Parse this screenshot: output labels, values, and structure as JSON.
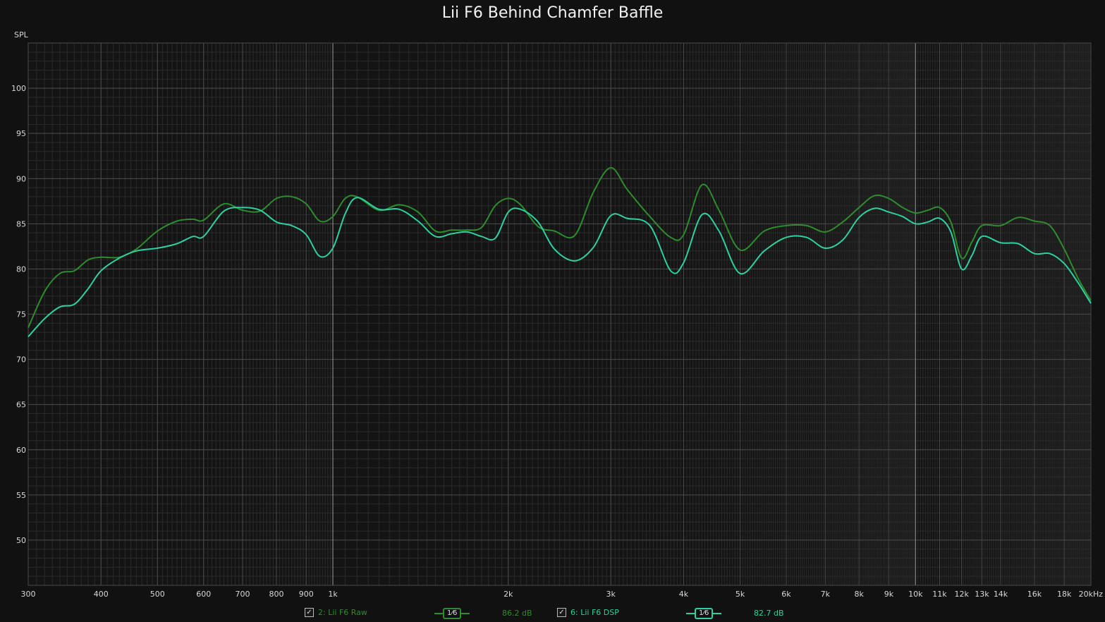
{
  "title": "Lii F6 Behind Chamfer Baffle",
  "colors": {
    "background": "#111111",
    "plot_bg": "#141414",
    "grid_minor": "#2a2a2a",
    "grid_major": "#4a4a4a",
    "grid_decade": "#9a9a9a",
    "tick_text": "#d8d8d8"
  },
  "chart_data": {
    "type": "line",
    "title": "Lii F6 Behind Chamfer Baffle",
    "ylabel": "SPL",
    "xscale": "log",
    "xlim": [
      300,
      20000
    ],
    "ylim": [
      45,
      105
    ],
    "yticks": [
      50,
      55,
      60,
      65,
      70,
      75,
      80,
      85,
      90,
      95,
      100
    ],
    "xticks": [
      {
        "v": 300,
        "label": "300"
      },
      {
        "v": 400,
        "label": "400"
      },
      {
        "v": 500,
        "label": "500"
      },
      {
        "v": 600,
        "label": "600"
      },
      {
        "v": 700,
        "label": "700"
      },
      {
        "v": 800,
        "label": "800"
      },
      {
        "v": 900,
        "label": "900"
      },
      {
        "v": 1000,
        "label": "1k"
      },
      {
        "v": 2000,
        "label": "2k"
      },
      {
        "v": 3000,
        "label": "3k"
      },
      {
        "v": 4000,
        "label": "4k"
      },
      {
        "v": 5000,
        "label": "5k"
      },
      {
        "v": 6000,
        "label": "6k"
      },
      {
        "v": 7000,
        "label": "7k"
      },
      {
        "v": 8000,
        "label": "8k"
      },
      {
        "v": 9000,
        "label": "9k"
      },
      {
        "v": 10000,
        "label": "10k"
      },
      {
        "v": 11000,
        "label": "11k"
      },
      {
        "v": 12000,
        "label": "12k"
      },
      {
        "v": 13000,
        "label": "13k"
      },
      {
        "v": 14000,
        "label": "14k"
      },
      {
        "v": 16000,
        "label": "16k"
      },
      {
        "v": 18000,
        "label": "18k"
      },
      {
        "v": 20000,
        "label": "20kHz"
      }
    ],
    "grid": true,
    "series": [
      {
        "name": "2: Lii F6 Raw",
        "color": "#2e8b2e",
        "smoothing": "1/6",
        "level": "86.2 dB",
        "x": [
          300,
          320,
          340,
          360,
          380,
          400,
          430,
          460,
          500,
          540,
          575,
          600,
          650,
          700,
          750,
          800,
          850,
          900,
          950,
          1000,
          1050,
          1100,
          1200,
          1300,
          1400,
          1500,
          1600,
          1700,
          1800,
          1900,
          2000,
          2100,
          2250,
          2400,
          2600,
          2800,
          3000,
          3200,
          3500,
          3800,
          4000,
          4300,
          4600,
          5000,
          5500,
          6000,
          6500,
          7000,
          7500,
          8000,
          8500,
          9000,
          9500,
          10000,
          10500,
          11000,
          11500,
          12000,
          12500,
          13000,
          14000,
          15000,
          16000,
          17000,
          18000,
          19000,
          20000
        ],
        "y": [
          73.5,
          77.5,
          79.5,
          79.8,
          81,
          81.3,
          81.3,
          82.2,
          84.2,
          85.3,
          85.5,
          85.4,
          87.2,
          86.5,
          86.4,
          87.8,
          88,
          87.2,
          85.3,
          85.8,
          87.8,
          88,
          86.5,
          87.1,
          86.3,
          84.2,
          84.3,
          84.3,
          84.6,
          87,
          87.8,
          87.1,
          84.7,
          84.2,
          83.7,
          88.5,
          91.2,
          88.8,
          85.8,
          83.5,
          83.8,
          89.3,
          86.5,
          82.1,
          84.2,
          84.8,
          84.8,
          84.1,
          85.2,
          86.8,
          88.1,
          87.8,
          86.8,
          86.2,
          86.5,
          86.8,
          85.2,
          81.2,
          83,
          84.8,
          84.8,
          85.7,
          85.3,
          84.8,
          82.2,
          79,
          76.5
        ]
      },
      {
        "name": "6: Lii F6 DSP",
        "color": "#2ed0a0",
        "smoothing": "1/6",
        "level": "82.7 dB",
        "x": [
          300,
          320,
          340,
          360,
          380,
          400,
          430,
          460,
          500,
          540,
          575,
          600,
          650,
          700,
          750,
          800,
          850,
          900,
          950,
          1000,
          1050,
          1100,
          1200,
          1300,
          1400,
          1500,
          1600,
          1700,
          1800,
          1900,
          2000,
          2100,
          2250,
          2400,
          2600,
          2800,
          3000,
          3200,
          3500,
          3800,
          4000,
          4300,
          4600,
          5000,
          5500,
          6000,
          6500,
          7000,
          7500,
          8000,
          8500,
          9000,
          9500,
          10000,
          10500,
          11000,
          11500,
          12000,
          12500,
          13000,
          14000,
          15000,
          16000,
          17000,
          18000,
          19000,
          20000
        ],
        "y": [
          72.5,
          74.5,
          75.8,
          76.1,
          77.8,
          79.8,
          81.2,
          82,
          82.3,
          82.8,
          83.6,
          83.6,
          86.4,
          86.8,
          86.5,
          85.2,
          84.8,
          83.8,
          81.4,
          82.3,
          86.1,
          87.9,
          86.6,
          86.6,
          85.3,
          83.6,
          83.9,
          84.1,
          83.6,
          83.4,
          86.3,
          86.6,
          85.2,
          82.2,
          80.9,
          82.4,
          85.9,
          85.6,
          84.8,
          79.8,
          80.7,
          86,
          84.2,
          79.5,
          82,
          83.5,
          83.5,
          82.3,
          83.2,
          85.7,
          86.7,
          86.3,
          85.8,
          85,
          85.2,
          85.6,
          84.1,
          80,
          81.5,
          83.6,
          82.9,
          82.8,
          81.7,
          81.7,
          80.6,
          78.5,
          76.2
        ]
      }
    ]
  },
  "legend": {
    "items": [
      {
        "label": "2: Lii F6 Raw",
        "checked": "✓",
        "smoothing": "1⁄6",
        "level": "86.2 dB"
      },
      {
        "label": "6: Lii F6 DSP",
        "checked": "✓",
        "smoothing": "1⁄6",
        "level": "82.7 dB"
      }
    ]
  }
}
